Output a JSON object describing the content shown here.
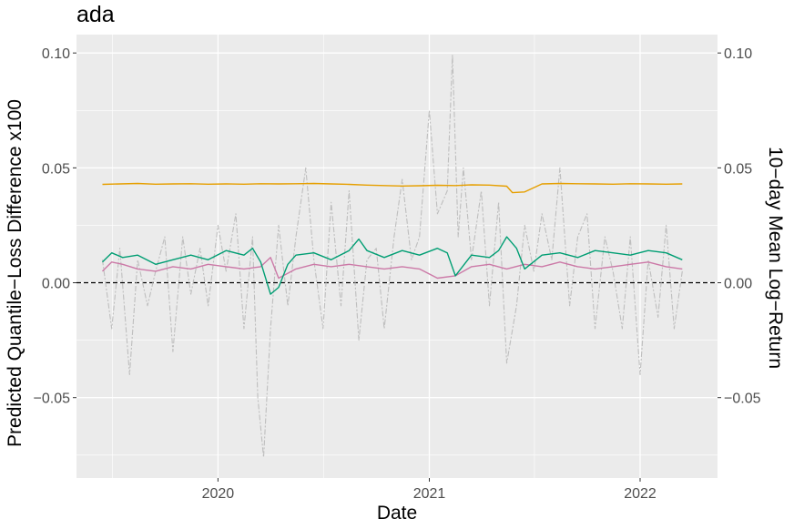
{
  "chart_data": {
    "type": "line",
    "title": "ada",
    "xlabel": "Date",
    "ylabel": "Predicted Quantile−Loss Difference x100",
    "ylabel_right": "10−day Mean Log−Return",
    "x_ticks": [
      "2020",
      "2021",
      "2022"
    ],
    "y_ticks": [
      "−0.05",
      "0.00",
      "0.05",
      "0.10"
    ],
    "y_ticks_right": [
      "−0.05",
      "0.00",
      "0.05",
      "0.10"
    ],
    "xlim": [
      "2019-05-01",
      "2022-05-15"
    ],
    "ylim": [
      -0.085,
      0.108
    ],
    "grid": true,
    "reference_line": {
      "y": 0.0,
      "style": "dashed",
      "color": "#000000"
    },
    "series": [
      {
        "color": "#E69F00",
        "style": "solid",
        "x_unit": "date",
        "x": [
          "2019-06-15",
          "2019-07-15",
          "2019-08-15",
          "2019-09-15",
          "2019-10-15",
          "2019-11-15",
          "2019-12-15",
          "2020-01-15",
          "2020-02-15",
          "2020-03-15",
          "2020-04-15",
          "2020-05-15",
          "2020-06-15",
          "2020-07-15",
          "2020-08-15",
          "2020-09-15",
          "2020-10-15",
          "2020-11-15",
          "2020-12-15",
          "2021-01-15",
          "2021-02-15",
          "2021-03-15",
          "2021-04-15",
          "2021-05-15",
          "2021-05-25",
          "2021-06-15",
          "2021-07-15",
          "2021-08-15",
          "2021-09-15",
          "2021-10-15",
          "2021-11-15",
          "2021-12-15",
          "2022-01-15",
          "2022-02-15",
          "2022-03-15"
        ],
        "y": [
          0.0428,
          0.043,
          0.0432,
          0.0429,
          0.043,
          0.0431,
          0.0429,
          0.043,
          0.0429,
          0.0431,
          0.043,
          0.0431,
          0.0432,
          0.043,
          0.0428,
          0.0425,
          0.0423,
          0.0421,
          0.0422,
          0.0424,
          0.0423,
          0.0426,
          0.0425,
          0.042,
          0.0392,
          0.0395,
          0.043,
          0.0432,
          0.0431,
          0.043,
          0.0429,
          0.0431,
          0.043,
          0.0429,
          0.043
        ]
      },
      {
        "color": "#009E73",
        "style": "solid",
        "x_unit": "date",
        "x": [
          "2019-06-15",
          "2019-07-01",
          "2019-07-20",
          "2019-08-15",
          "2019-09-15",
          "2019-10-15",
          "2019-11-15",
          "2019-12-15",
          "2020-01-15",
          "2020-02-15",
          "2020-03-01",
          "2020-03-15",
          "2020-04-01",
          "2020-04-15",
          "2020-05-01",
          "2020-05-15",
          "2020-06-15",
          "2020-07-15",
          "2020-08-15",
          "2020-09-01",
          "2020-09-15",
          "2020-10-15",
          "2020-11-15",
          "2020-12-15",
          "2021-01-15",
          "2021-02-01",
          "2021-02-15",
          "2021-03-15",
          "2021-04-15",
          "2021-05-01",
          "2021-05-15",
          "2021-06-01",
          "2021-06-15",
          "2021-07-15",
          "2021-08-15",
          "2021-09-15",
          "2021-10-15",
          "2021-11-15",
          "2021-12-15",
          "2022-01-15",
          "2022-02-15",
          "2022-03-15"
        ],
        "y": [
          0.009,
          0.013,
          0.011,
          0.012,
          0.008,
          0.01,
          0.012,
          0.01,
          0.014,
          0.012,
          0.015,
          0.009,
          -0.005,
          -0.002,
          0.008,
          0.012,
          0.013,
          0.01,
          0.014,
          0.019,
          0.014,
          0.011,
          0.014,
          0.012,
          0.015,
          0.013,
          0.003,
          0.012,
          0.011,
          0.014,
          0.02,
          0.015,
          0.006,
          0.012,
          0.013,
          0.011,
          0.014,
          0.013,
          0.012,
          0.014,
          0.013,
          0.01
        ]
      },
      {
        "color": "#CC79A7",
        "style": "solid",
        "x_unit": "date",
        "x": [
          "2019-06-15",
          "2019-07-01",
          "2019-07-20",
          "2019-08-15",
          "2019-09-15",
          "2019-10-15",
          "2019-11-15",
          "2019-12-15",
          "2020-01-15",
          "2020-02-15",
          "2020-03-15",
          "2020-04-01",
          "2020-04-15",
          "2020-05-15",
          "2020-06-15",
          "2020-07-15",
          "2020-08-15",
          "2020-09-15",
          "2020-10-15",
          "2020-11-15",
          "2020-12-15",
          "2021-01-15",
          "2021-02-15",
          "2021-03-15",
          "2021-04-15",
          "2021-05-15",
          "2021-06-15",
          "2021-07-15",
          "2021-08-15",
          "2021-09-15",
          "2021-10-15",
          "2021-11-15",
          "2021-12-15",
          "2022-01-15",
          "2022-02-15",
          "2022-03-15"
        ],
        "y": [
          0.005,
          0.009,
          0.008,
          0.006,
          0.005,
          0.007,
          0.006,
          0.008,
          0.007,
          0.006,
          0.007,
          0.011,
          0.002,
          0.006,
          0.008,
          0.007,
          0.008,
          0.007,
          0.006,
          0.007,
          0.006,
          0.002,
          0.003,
          0.007,
          0.008,
          0.006,
          0.008,
          0.007,
          0.009,
          0.007,
          0.006,
          0.007,
          0.008,
          0.009,
          0.007,
          0.006
        ]
      },
      {
        "color": "#BEBEBE",
        "style": "dashed",
        "x_unit": "date",
        "x": [
          "2019-06-15",
          "2019-07-01",
          "2019-07-15",
          "2019-08-01",
          "2019-08-15",
          "2019-09-01",
          "2019-09-15",
          "2019-10-01",
          "2019-10-15",
          "2019-11-01",
          "2019-11-15",
          "2019-12-01",
          "2019-12-15",
          "2020-01-01",
          "2020-01-15",
          "2020-02-01",
          "2020-02-15",
          "2020-03-01",
          "2020-03-10",
          "2020-03-20",
          "2020-04-01",
          "2020-04-15",
          "2020-05-01",
          "2020-05-15",
          "2020-06-01",
          "2020-06-15",
          "2020-07-01",
          "2020-07-15",
          "2020-08-01",
          "2020-08-15",
          "2020-09-01",
          "2020-09-15",
          "2020-10-01",
          "2020-10-15",
          "2020-11-01",
          "2020-11-15",
          "2020-12-01",
          "2020-12-15",
          "2021-01-01",
          "2021-01-15",
          "2021-02-01",
          "2021-02-10",
          "2021-02-20",
          "2021-03-01",
          "2021-03-15",
          "2021-04-01",
          "2021-04-15",
          "2021-05-01",
          "2021-05-15",
          "2021-06-01",
          "2021-06-15",
          "2021-07-01",
          "2021-07-15",
          "2021-08-01",
          "2021-08-15",
          "2021-09-01",
          "2021-09-15",
          "2021-10-01",
          "2021-10-15",
          "2021-11-01",
          "2021-11-15",
          "2021-12-01",
          "2021-12-15",
          "2022-01-01",
          "2022-01-15",
          "2022-02-01",
          "2022-02-15",
          "2022-03-01",
          "2022-03-15"
        ],
        "y": [
          0.01,
          -0.02,
          0.015,
          -0.04,
          0.01,
          -0.01,
          0.005,
          0.02,
          -0.03,
          0.02,
          -0.005,
          0.015,
          -0.01,
          0.025,
          0.005,
          0.03,
          -0.02,
          0.02,
          -0.05,
          -0.076,
          -0.02,
          0.025,
          -0.01,
          0.02,
          0.05,
          0.01,
          -0.02,
          0.035,
          -0.01,
          0.04,
          -0.025,
          0.01,
          0.015,
          -0.02,
          0.02,
          0.045,
          0.01,
          0.02,
          0.075,
          0.03,
          0.04,
          0.099,
          0.02,
          0.05,
          0.01,
          0.04,
          -0.01,
          0.035,
          -0.035,
          -0.01,
          0.025,
          0.005,
          0.03,
          0.01,
          0.05,
          -0.01,
          0.02,
          0.03,
          -0.02,
          0.02,
          0.005,
          -0.02,
          0.02,
          -0.04,
          0.01,
          -0.015,
          0.025,
          -0.02,
          0.005
        ]
      }
    ]
  }
}
